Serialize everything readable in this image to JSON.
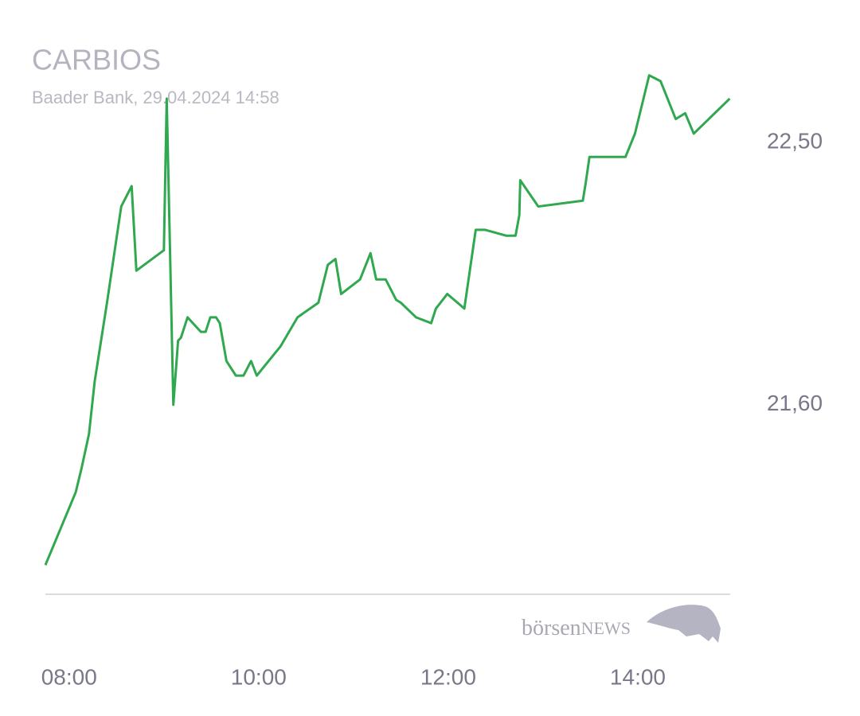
{
  "chart_data": {
    "type": "line",
    "title": "CARBIOS",
    "subtitle": "Baader Bank, 29.04.2024 14:58",
    "watermark": {
      "prefix": "börsen",
      "suffix": "NEWS"
    },
    "x": [
      7.75,
      8.07,
      8.13,
      8.21,
      8.27,
      8.4,
      8.55,
      8.66,
      8.71,
      9.0,
      9.03,
      9.1,
      9.15,
      9.18,
      9.25,
      9.39,
      9.44,
      9.49,
      9.55,
      9.59,
      9.66,
      9.76,
      9.84,
      9.92,
      9.98,
      10.08,
      10.23,
      10.41,
      10.63,
      10.73,
      10.81,
      10.87,
      11.07,
      11.18,
      11.24,
      11.34,
      11.45,
      11.5,
      11.66,
      11.82,
      11.87,
      11.99,
      12.17,
      12.29,
      12.39,
      12.61,
      12.71,
      12.75,
      12.76,
      12.95,
      13.42,
      13.45,
      13.49,
      13.87,
      13.97,
      14.12,
      14.24,
      14.4,
      14.5,
      14.59,
      14.97
    ],
    "series": [
      {
        "name": "CARBIOS",
        "color": "#2fa84f",
        "values": [
          21.05,
          21.3,
          21.38,
          21.5,
          21.68,
          21.95,
          22.28,
          22.35,
          22.06,
          22.13,
          22.65,
          21.6,
          21.82,
          21.83,
          21.9,
          21.85,
          21.85,
          21.9,
          21.9,
          21.88,
          21.75,
          21.7,
          21.7,
          21.75,
          21.7,
          21.74,
          21.8,
          21.9,
          21.95,
          22.08,
          22.1,
          21.98,
          22.03,
          22.12,
          22.03,
          22.03,
          21.96,
          21.95,
          21.9,
          21.88,
          21.93,
          21.98,
          21.93,
          22.2,
          22.2,
          22.18,
          22.18,
          22.25,
          22.37,
          22.28,
          22.3,
          22.36,
          22.45,
          22.45,
          22.53,
          22.73,
          22.71,
          22.58,
          22.6,
          22.53,
          22.65
        ]
      }
    ],
    "xlim": [
      7.75,
      15.0
    ],
    "ylim": [
      20.95,
      22.8
    ],
    "xticks": [
      {
        "value": 8,
        "label": "08:00"
      },
      {
        "value": 10,
        "label": "10:00"
      },
      {
        "value": 12,
        "label": "12:00"
      },
      {
        "value": 14,
        "label": "14:00"
      }
    ],
    "yticks": [
      {
        "value": 21.6,
        "label": "21,60"
      },
      {
        "value": 22.5,
        "label": "22,50"
      }
    ],
    "grid": false
  }
}
